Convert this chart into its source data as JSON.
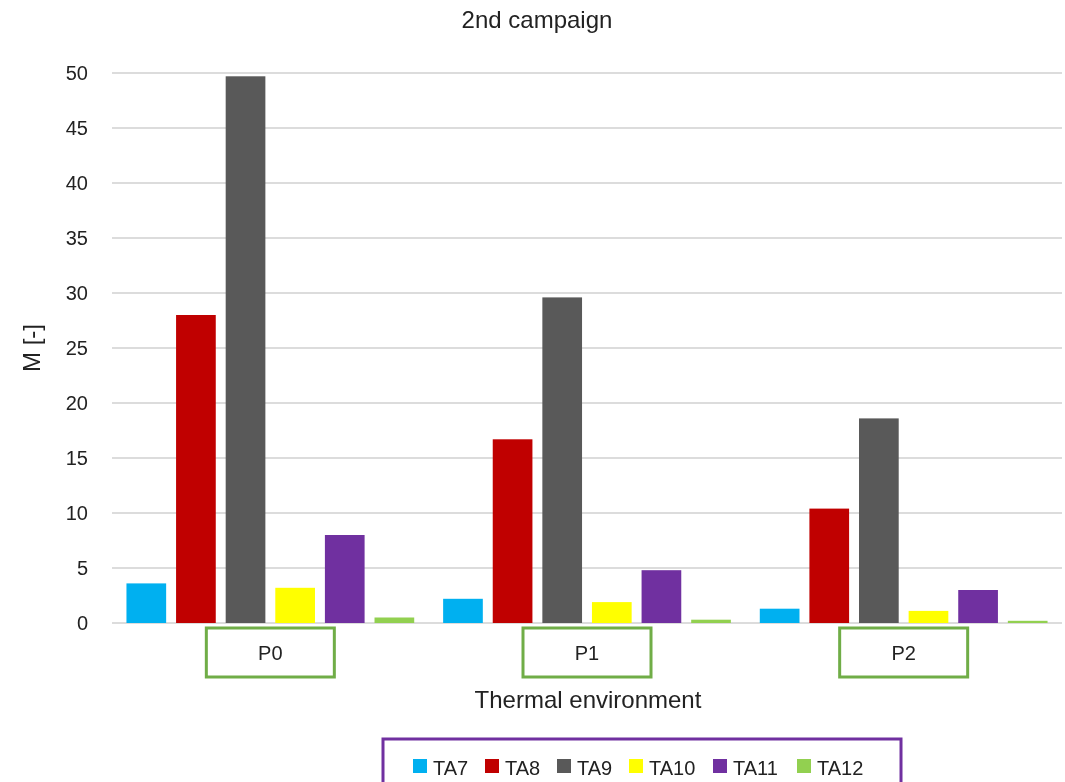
{
  "chart_data": {
    "type": "bar",
    "title": "2nd campaign",
    "xlabel": "Thermal environment",
    "ylabel": "M [-]",
    "categories": [
      "P0",
      "P1",
      "P2"
    ],
    "series": [
      {
        "name": "TA7",
        "color": "#00b0f0",
        "values": [
          3.6,
          2.2,
          1.3
        ]
      },
      {
        "name": "TA8",
        "color": "#c00000",
        "values": [
          28.0,
          16.7,
          10.4
        ]
      },
      {
        "name": "TA9",
        "color": "#595959",
        "values": [
          49.7,
          29.6,
          18.6
        ]
      },
      {
        "name": "TA10",
        "color": "#ffff00",
        "values": [
          3.2,
          1.9,
          1.1
        ]
      },
      {
        "name": "TA11",
        "color": "#7030a0",
        "values": [
          8.0,
          4.8,
          3.0
        ]
      },
      {
        "name": "TA12",
        "color": "#92d050",
        "values": [
          0.5,
          0.3,
          0.2
        ]
      }
    ],
    "ylim": [
      0,
      50
    ],
    "yticks": [
      0,
      5,
      10,
      15,
      20,
      25,
      30,
      35,
      40,
      45,
      50
    ],
    "grid": "y",
    "legend": "bottom"
  }
}
